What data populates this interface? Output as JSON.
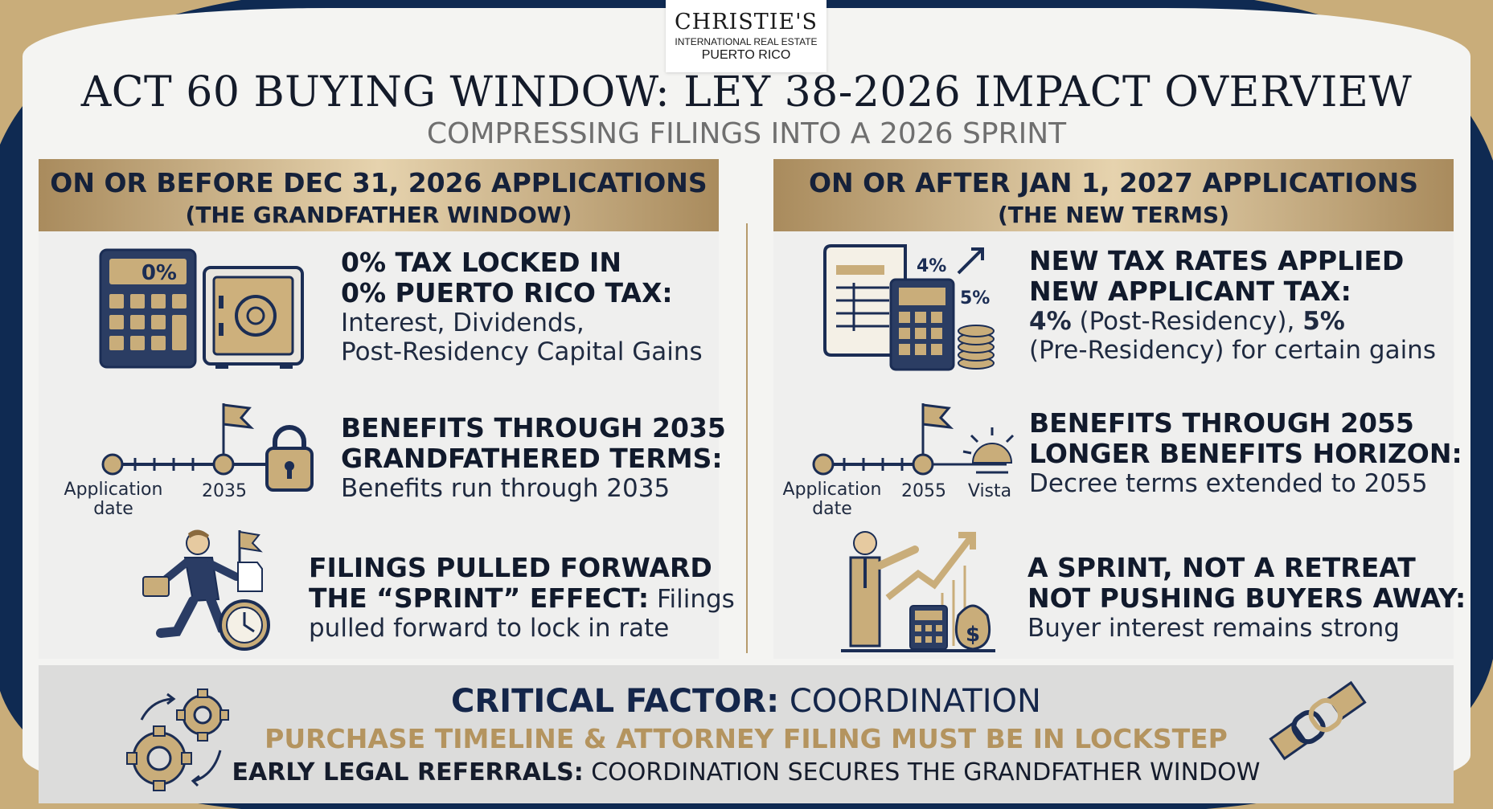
{
  "logo": {
    "name": "CHRISTIE'S",
    "line2": "INTERNATIONAL REAL ESTATE",
    "line3": "PUERTO RICO"
  },
  "title": "ACT 60 BUYING WINDOW: LEY 38-2026 IMPACT OVERVIEW",
  "subtitle": "COMPRESSING FILINGS INTO A 2026 SPRINT",
  "left": {
    "header_line1": "ON OR BEFORE DEC 31, 2026 APPLICATIONS",
    "header_line2": "(THE GRANDFATHER WINDOW)",
    "rows": [
      {
        "title": "0% TAX LOCKED IN",
        "sub_bold": "0% PUERTO RICO TAX:",
        "body1": "Interest, Dividends,",
        "body2": "Post-Residency Capital Gains",
        "icon": "calculator-safe-icon",
        "calc_label": "0%"
      },
      {
        "title": "BENEFITS THROUGH 2035",
        "sub_bold": "GRANDFATHERED TERMS:",
        "body1": "Benefits run through 2035",
        "icon": "timeline-lock-icon",
        "label_start": "Application date",
        "label_end": "2035"
      },
      {
        "title": "FILINGS PULLED FORWARD",
        "sub_bold": "THE “SPRINT” EFFECT:",
        "sub_rest": " Filings",
        "body1": "pulled forward to lock in rate",
        "icon": "running-businessman-icon"
      }
    ]
  },
  "right": {
    "header_line1": "ON OR AFTER JAN 1, 2027 APPLICATIONS",
    "header_line2": "(THE NEW TERMS)",
    "rows": [
      {
        "title": "NEW TAX RATES APPLIED",
        "sub_bold": "NEW APPLICANT TAX:",
        "rate1": "4%",
        "rate1_note": " (Post-Residency), ",
        "rate2": "5%",
        "body2": "(Pre-Residency) for certain gains",
        "icon": "document-calculator-coins-icon",
        "tag1": "4%",
        "tag2": "5%"
      },
      {
        "title": "BENEFITS THROUGH 2055",
        "sub_bold": "LONGER BENEFITS HORIZON:",
        "body1": "Decree terms extended to 2055",
        "icon": "timeline-sunrise-icon",
        "label_start": "Application date",
        "label_mid": "2055",
        "label_end": "Vista"
      },
      {
        "title": "A SPRINT, NOT A RETREAT",
        "sub_bold": "NOT PUSHING BUYERS AWAY:",
        "body1": "Buyer interest remains strong",
        "icon": "growth-chart-businessman-icon"
      }
    ]
  },
  "footer": {
    "line1_bold": "CRITICAL FACTOR:",
    "line1_rest": " COORDINATION",
    "line2": "PURCHASE TIMELINE & ATTORNEY FILING MUST BE IN LOCKSTEP",
    "line3_bold": "EARLY LEGAL REFERRALS:",
    "line3_rest": " COORDINATION SECURES THE GRANDFATHER WINDOW",
    "icon_left": "gears-icon",
    "icon_right": "handshake-chain-icon"
  },
  "colors": {
    "navy": "#1b2d54",
    "gold": "#b89a68",
    "light": "#efefee"
  }
}
